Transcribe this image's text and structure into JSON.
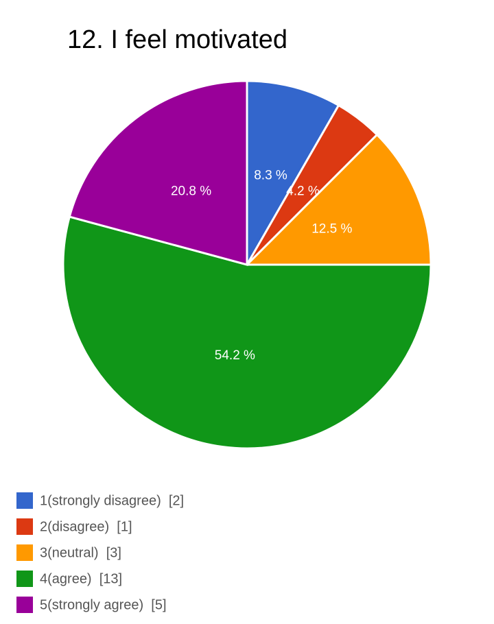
{
  "chart_data": {
    "type": "pie",
    "title": "12. I feel motivated",
    "categories": [
      "1(strongly disagree)  [2]",
      "2(disagree)  [1]",
      "3(neutral)  [3]",
      "4(agree)  [13]",
      "5(strongly agree)  [5]"
    ],
    "values": [
      8.3,
      4.2,
      12.5,
      54.2,
      20.8
    ],
    "value_labels": [
      "8.3 %",
      "4.2 %",
      "12.5 %",
      "54.2 %",
      "20.8 %"
    ],
    "colors": [
      "#3366cc",
      "#dc3912",
      "#ff9900",
      "#109618",
      "#990099"
    ],
    "legend": "bottom"
  }
}
